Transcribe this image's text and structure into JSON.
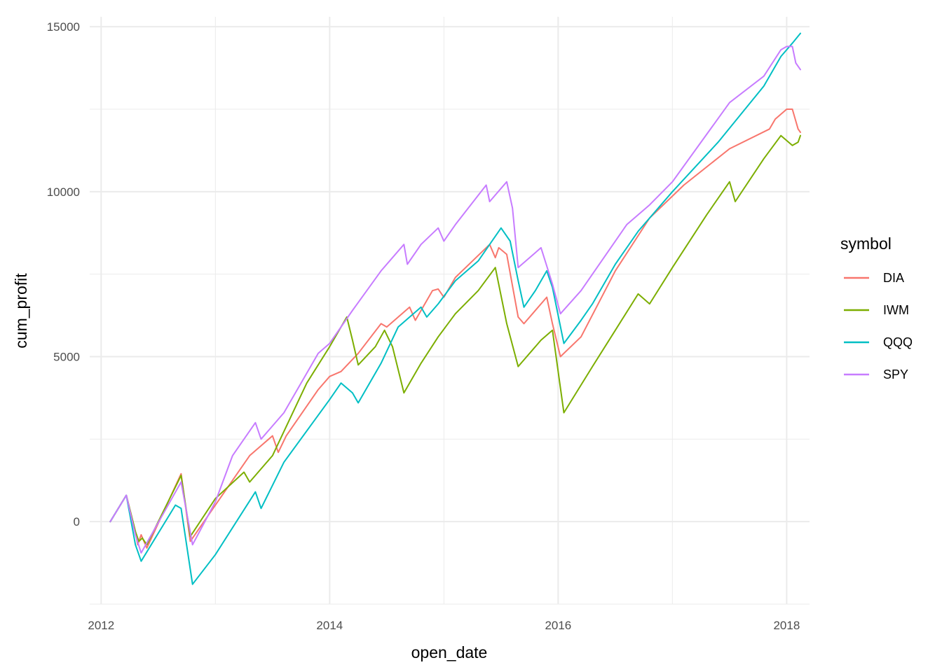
{
  "chart_data": {
    "type": "line",
    "xlabel": "open_date",
    "ylabel": "cum_profit",
    "xlim": [
      2011.9,
      2018.2
    ],
    "ylim": [
      -2500,
      15300
    ],
    "x_ticks": [
      2012,
      2014,
      2016,
      2018
    ],
    "x_tick_labels": [
      "2012",
      "2014",
      "2016",
      "2018"
    ],
    "x_minor_ticks": [
      2013,
      2015,
      2017
    ],
    "y_ticks": [
      0,
      5000,
      10000,
      15000
    ],
    "y_tick_labels": [
      "0",
      "5000",
      "10000",
      "15000"
    ],
    "y_minor_ticks": [
      -2500,
      2500,
      7500,
      12500
    ],
    "grid": true,
    "legend": {
      "title": "symbol",
      "position": "right"
    },
    "series": [
      {
        "name": "DIA",
        "color": "#F8766D",
        "x": [
          2012.08,
          2012.22,
          2012.3,
          2012.32,
          2012.35,
          2012.4,
          2012.7,
          2012.78,
          2013.0,
          2013.3,
          2013.5,
          2013.55,
          2013.62,
          2013.9,
          2014.0,
          2014.1,
          2014.25,
          2014.45,
          2014.5,
          2014.7,
          2014.75,
          2014.9,
          2014.95,
          2015.0,
          2015.1,
          2015.4,
          2015.45,
          2015.48,
          2015.55,
          2015.65,
          2015.7,
          2015.9,
          2015.95,
          2016.02,
          2016.2,
          2016.5,
          2016.8,
          2017.1,
          2017.5,
          2017.85,
          2017.9,
          2018.0,
          2018.05,
          2018.1,
          2018.12
        ],
        "y": [
          0,
          800,
          -300,
          -700,
          -400,
          -800,
          1450,
          -600,
          500,
          2000,
          2600,
          2100,
          2600,
          4000,
          4400,
          4550,
          5100,
          6000,
          5900,
          6500,
          6100,
          7000,
          7050,
          6800,
          7400,
          8400,
          8000,
          8300,
          8100,
          6200,
          6000,
          6800,
          6000,
          5000,
          5600,
          7600,
          9200,
          10200,
          11300,
          11900,
          12200,
          12500,
          12500,
          11900,
          11800
        ]
      },
      {
        "name": "IWM",
        "color": "#7CAE00",
        "x": [
          2012.08,
          2012.22,
          2012.3,
          2012.33,
          2012.36,
          2012.4,
          2012.7,
          2012.78,
          2013.0,
          2013.25,
          2013.3,
          2013.5,
          2013.8,
          2014.0,
          2014.15,
          2014.2,
          2014.25,
          2014.4,
          2014.48,
          2014.55,
          2014.65,
          2014.8,
          2014.95,
          2015.1,
          2015.3,
          2015.45,
          2015.55,
          2015.65,
          2015.85,
          2015.95,
          2016.05,
          2016.3,
          2016.5,
          2016.7,
          2016.8,
          2017.0,
          2017.3,
          2017.5,
          2017.55,
          2017.8,
          2017.95,
          2018.05,
          2018.1,
          2018.12
        ],
        "y": [
          0,
          800,
          -300,
          -600,
          -500,
          -700,
          1400,
          -450,
          700,
          1500,
          1200,
          2000,
          4200,
          5300,
          6200,
          5500,
          4750,
          5300,
          5800,
          5300,
          3900,
          4800,
          5600,
          6300,
          7000,
          7700,
          6000,
          4700,
          5500,
          5800,
          3300,
          4700,
          5800,
          6900,
          6600,
          7700,
          9300,
          10300,
          9700,
          11000,
          11700,
          11400,
          11500,
          11700
        ]
      },
      {
        "name": "QQQ",
        "color": "#00BFC4",
        "x": [
          2012.08,
          2012.22,
          2012.3,
          2012.35,
          2012.65,
          2012.7,
          2012.8,
          2013.0,
          2013.35,
          2013.4,
          2013.6,
          2014.0,
          2014.1,
          2014.2,
          2014.25,
          2014.45,
          2014.6,
          2014.8,
          2014.85,
          2014.95,
          2015.1,
          2015.3,
          2015.5,
          2015.58,
          2015.65,
          2015.7,
          2015.8,
          2015.9,
          2015.95,
          2016.05,
          2016.2,
          2016.3,
          2016.5,
          2016.7,
          2017.0,
          2017.4,
          2017.8,
          2017.95,
          2018.05,
          2018.12
        ],
        "y": [
          0,
          800,
          -700,
          -1200,
          500,
          400,
          -1900,
          -1000,
          900,
          400,
          1800,
          3700,
          4200,
          3900,
          3600,
          4800,
          5900,
          6500,
          6200,
          6600,
          7300,
          7900,
          8900,
          8500,
          7300,
          6500,
          7000,
          7600,
          7100,
          5400,
          6100,
          6600,
          7800,
          8800,
          10000,
          11500,
          13200,
          14100,
          14500,
          14800
        ]
      },
      {
        "name": "SPY",
        "color": "#C77CFF",
        "x": [
          2012.08,
          2012.22,
          2012.3,
          2012.35,
          2012.7,
          2012.8,
          2013.0,
          2013.15,
          2013.35,
          2013.4,
          2013.6,
          2013.9,
          2014.0,
          2014.2,
          2014.45,
          2014.65,
          2014.68,
          2014.8,
          2014.95,
          2015.0,
          2015.1,
          2015.37,
          2015.4,
          2015.55,
          2015.6,
          2015.65,
          2015.75,
          2015.85,
          2015.95,
          2016.02,
          2016.2,
          2016.6,
          2016.8,
          2017.0,
          2017.5,
          2017.8,
          2017.95,
          2018.0,
          2018.05,
          2018.08,
          2018.12
        ],
        "y": [
          0,
          800,
          -400,
          -950,
          1200,
          -700,
          600,
          2000,
          3000,
          2500,
          3300,
          5100,
          5400,
          6400,
          7600,
          8400,
          7800,
          8400,
          8900,
          8500,
          9000,
          10200,
          9700,
          10300,
          9500,
          7700,
          8000,
          8300,
          7200,
          6300,
          7000,
          9000,
          9600,
          10300,
          12700,
          13500,
          14300,
          14400,
          14400,
          13900,
          13700
        ]
      }
    ]
  }
}
